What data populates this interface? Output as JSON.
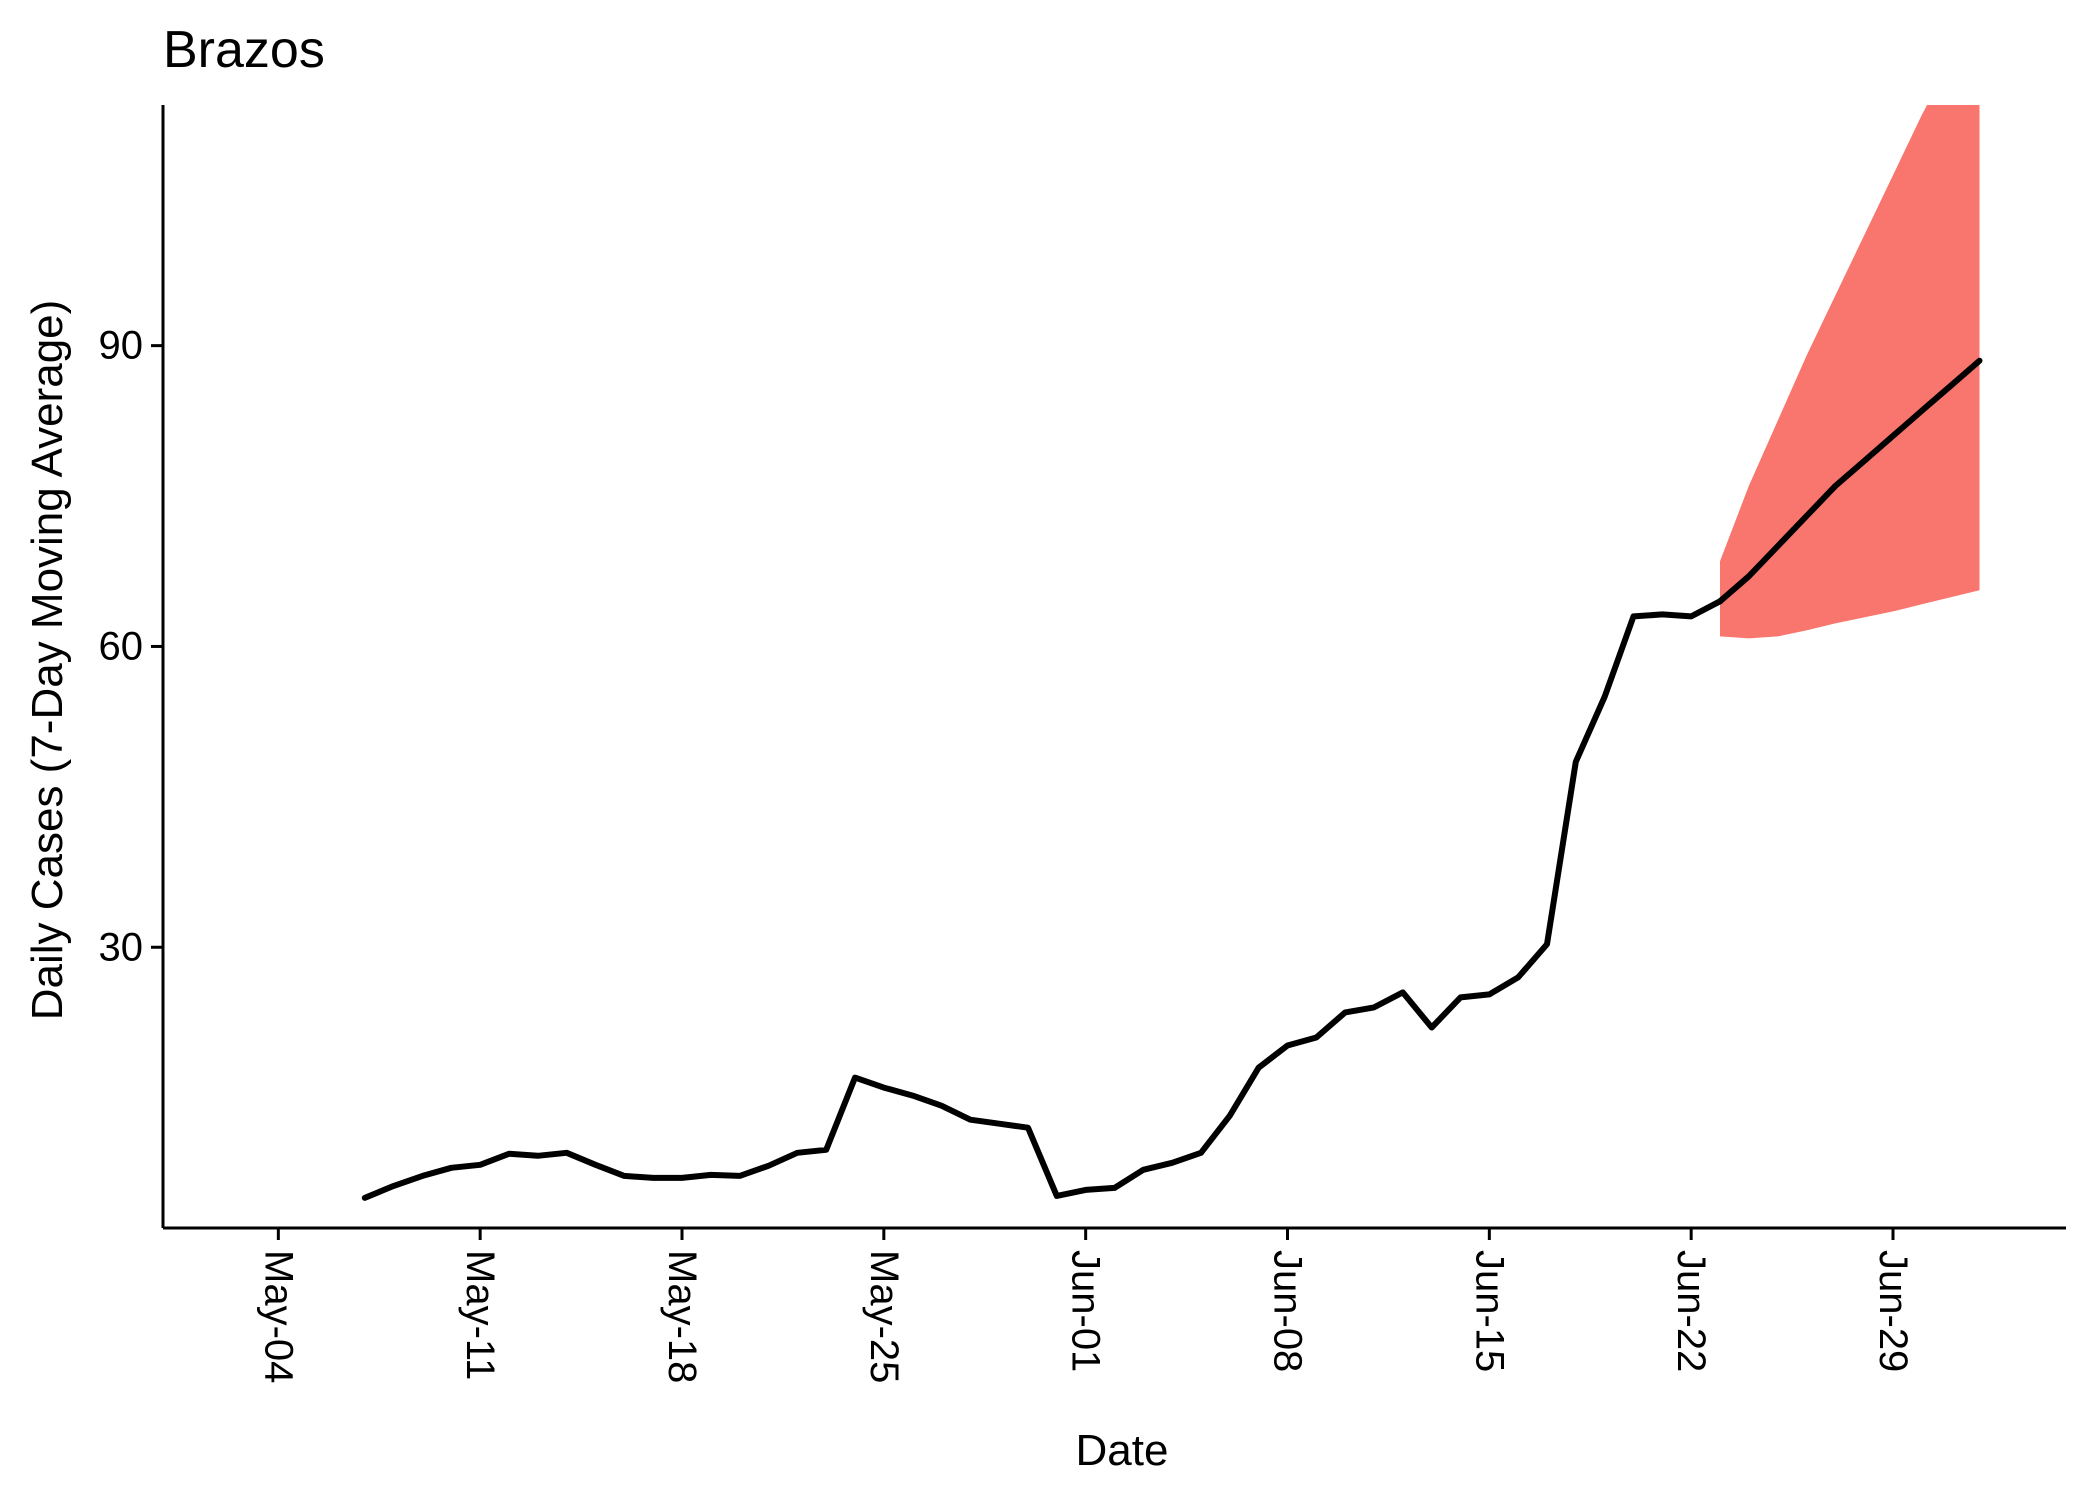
{
  "chart_data": {
    "type": "line",
    "title": "Brazos",
    "xlabel": "Date",
    "ylabel": "Daily Cases (7-Day Moving Average)",
    "x_tick_labels": [
      "May-04",
      "May-11",
      "May-18",
      "May-25",
      "Jun-01",
      "Jun-08",
      "Jun-15",
      "Jun-22",
      "Jun-29"
    ],
    "y_ticks": [
      30,
      60,
      90
    ],
    "xlim": [
      "2020-04-30",
      "2020-07-05"
    ],
    "ylim": [
      2,
      114
    ],
    "grid": false,
    "legend": "none",
    "band_color": "#F8766D",
    "observed": {
      "x": [
        "2020-05-07",
        "2020-05-08",
        "2020-05-09",
        "2020-05-10",
        "2020-05-11",
        "2020-05-12",
        "2020-05-13",
        "2020-05-14",
        "2020-05-15",
        "2020-05-16",
        "2020-05-17",
        "2020-05-18",
        "2020-05-19",
        "2020-05-20",
        "2020-05-21",
        "2020-05-22",
        "2020-05-23",
        "2020-05-24",
        "2020-05-25",
        "2020-05-26",
        "2020-05-27",
        "2020-05-28",
        "2020-05-29",
        "2020-05-30",
        "2020-05-31",
        "2020-06-01",
        "2020-06-02",
        "2020-06-03",
        "2020-06-04",
        "2020-06-05",
        "2020-06-06",
        "2020-06-07",
        "2020-06-08",
        "2020-06-09",
        "2020-06-10",
        "2020-06-11",
        "2020-06-12",
        "2020-06-13",
        "2020-06-14",
        "2020-06-15",
        "2020-06-16",
        "2020-06-17",
        "2020-06-18",
        "2020-06-19",
        "2020-06-20",
        "2020-06-21",
        "2020-06-22",
        "2020-06-23"
      ],
      "y": [
        5.0,
        6.2,
        7.2,
        8.0,
        8.3,
        9.4,
        9.2,
        9.5,
        8.3,
        7.2,
        7.0,
        7.0,
        7.3,
        7.2,
        8.2,
        9.5,
        9.8,
        17.0,
        16.0,
        15.2,
        14.2,
        12.8,
        12.4,
        12.0,
        5.2,
        5.8,
        6.0,
        7.8,
        8.5,
        9.5,
        13.2,
        18.0,
        20.2,
        21.0,
        23.5,
        24.0,
        25.5,
        22.0,
        25.0,
        25.3,
        27.0,
        30.3,
        48.5,
        55.0,
        63.0,
        63.2,
        63.0,
        64.5
      ]
    },
    "forecast": {
      "x": [
        "2020-06-23",
        "2020-06-24",
        "2020-06-25",
        "2020-06-26",
        "2020-06-27",
        "2020-06-28",
        "2020-06-29",
        "2020-06-30",
        "2020-07-01",
        "2020-07-02"
      ],
      "y": [
        64.5,
        67.0,
        70.0,
        73.0,
        76.0,
        78.5,
        81.0,
        83.5,
        86.0,
        88.5
      ],
      "lower": [
        61.0,
        60.8,
        61.0,
        61.6,
        62.3,
        62.9,
        63.5,
        64.2,
        64.9,
        65.6
      ],
      "upper": [
        68.5,
        76.0,
        82.5,
        89.0,
        95.0,
        101.0,
        107.0,
        113.0,
        118.5,
        124.0
      ]
    }
  }
}
